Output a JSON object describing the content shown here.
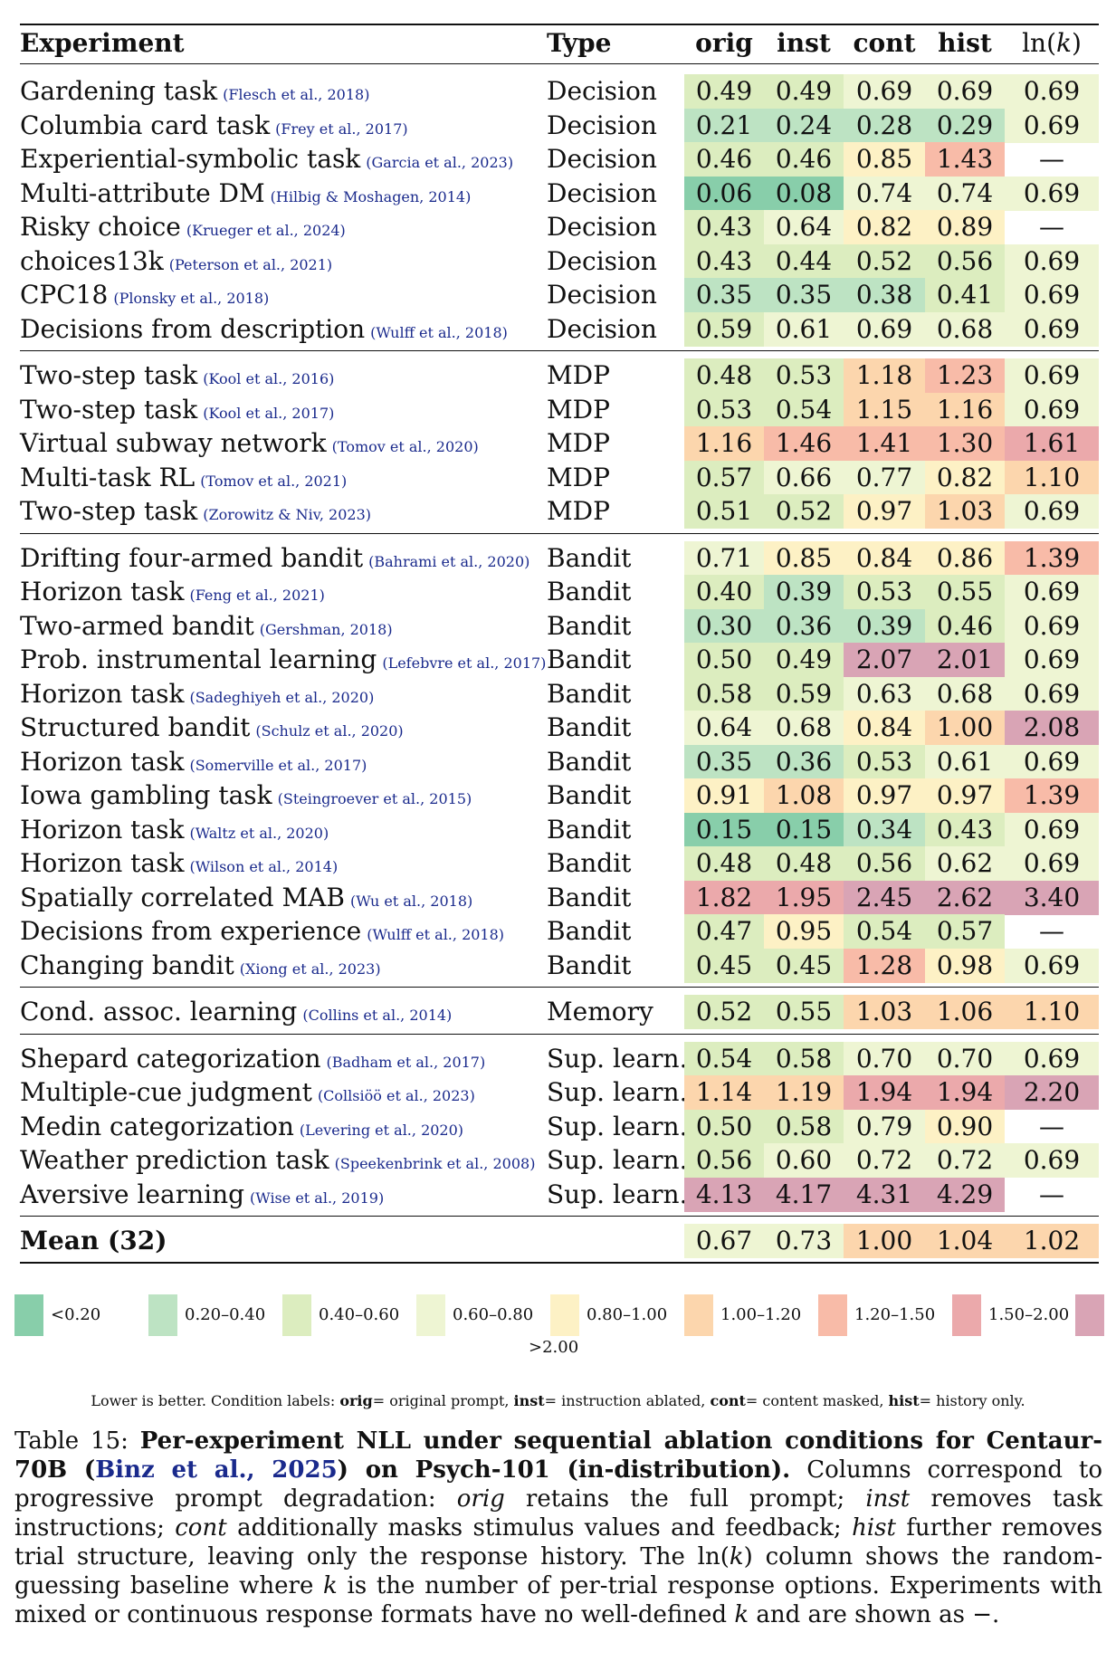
{
  "headers": {
    "experiment": "Experiment",
    "type": "Type",
    "orig": "orig",
    "inst": "inst",
    "cont": "cont",
    "hist": "hist",
    "lnk": "ln(k)"
  },
  "colors": {
    "lt020": "#88ceaa",
    "b020_040": "#bde3c3",
    "b040_060": "#dcedbf",
    "b060_080": "#eef5d3",
    "b080_100": "#fdf1c5",
    "b100_120": "#fcd6ad",
    "b120_150": "#f8bba8",
    "b150_200": "#eba9ab",
    "gt200": "#d9a4b5"
  },
  "dash": "—",
  "groups": [
    [
      {
        "exp": "Gardening task",
        "cite": "(Flesch et al., 2018)",
        "type": "Decision",
        "v": [
          0.49,
          0.49,
          0.69,
          0.69,
          0.69
        ]
      },
      {
        "exp": "Columbia card task",
        "cite": "(Frey et al., 2017)",
        "type": "Decision",
        "v": [
          0.21,
          0.24,
          0.28,
          0.29,
          0.69
        ]
      },
      {
        "exp": "Experiential-symbolic task",
        "cite": "(Garcia et al., 2023)",
        "type": "Decision",
        "v": [
          0.46,
          0.46,
          0.85,
          1.43,
          null
        ]
      },
      {
        "exp": "Multi-attribute DM",
        "cite": "(Hilbig & Moshagen, 2014)",
        "type": "Decision",
        "v": [
          0.06,
          0.08,
          0.74,
          0.74,
          0.69
        ]
      },
      {
        "exp": "Risky choice",
        "cite": "(Krueger et al., 2024)",
        "type": "Decision",
        "v": [
          0.43,
          0.64,
          0.82,
          0.89,
          null
        ]
      },
      {
        "exp": "choices13k",
        "cite": "(Peterson et al., 2021)",
        "type": "Decision",
        "v": [
          0.43,
          0.44,
          0.52,
          0.56,
          0.69
        ]
      },
      {
        "exp": "CPC18",
        "cite": "(Plonsky et al., 2018)",
        "type": "Decision",
        "v": [
          0.35,
          0.35,
          0.38,
          0.41,
          0.69
        ]
      },
      {
        "exp": "Decisions from description",
        "cite": "(Wulff et al., 2018)",
        "type": "Decision",
        "v": [
          0.59,
          0.61,
          0.69,
          0.68,
          0.69
        ]
      }
    ],
    [
      {
        "exp": "Two-step task",
        "cite": "(Kool et al., 2016)",
        "type": "MDP",
        "v": [
          0.48,
          0.53,
          1.18,
          1.23,
          0.69
        ]
      },
      {
        "exp": "Two-step task",
        "cite": "(Kool et al., 2017)",
        "type": "MDP",
        "v": [
          0.53,
          0.54,
          1.15,
          1.16,
          0.69
        ]
      },
      {
        "exp": "Virtual subway network",
        "cite": "(Tomov et al., 2020)",
        "type": "MDP",
        "v": [
          1.16,
          1.46,
          1.41,
          1.3,
          1.61
        ]
      },
      {
        "exp": "Multi-task RL",
        "cite": "(Tomov et al., 2021)",
        "type": "MDP",
        "v": [
          0.57,
          0.66,
          0.77,
          0.82,
          1.1
        ]
      },
      {
        "exp": "Two-step task",
        "cite": "(Zorowitz & Niv, 2023)",
        "type": "MDP",
        "v": [
          0.51,
          0.52,
          0.97,
          1.03,
          0.69
        ]
      }
    ],
    [
      {
        "exp": "Drifting four-armed bandit",
        "cite": "(Bahrami et al., 2020)",
        "type": "Bandit",
        "v": [
          0.71,
          0.85,
          0.84,
          0.86,
          1.39
        ]
      },
      {
        "exp": "Horizon task",
        "cite": "(Feng et al., 2021)",
        "type": "Bandit",
        "v": [
          0.4,
          0.39,
          0.53,
          0.55,
          0.69
        ]
      },
      {
        "exp": "Two-armed bandit",
        "cite": "(Gershman, 2018)",
        "type": "Bandit",
        "v": [
          0.3,
          0.36,
          0.39,
          0.46,
          0.69
        ]
      },
      {
        "exp": "Prob. instrumental learning",
        "cite": "(Lefebvre et al., 2017)",
        "type": "Bandit",
        "v": [
          0.5,
          0.49,
          2.07,
          2.01,
          0.69
        ]
      },
      {
        "exp": "Horizon task",
        "cite": "(Sadeghiyeh et al., 2020)",
        "type": "Bandit",
        "v": [
          0.58,
          0.59,
          0.63,
          0.68,
          0.69
        ]
      },
      {
        "exp": "Structured bandit",
        "cite": "(Schulz et al., 2020)",
        "type": "Bandit",
        "v": [
          0.64,
          0.68,
          0.84,
          1.0,
          2.08
        ]
      },
      {
        "exp": "Horizon task",
        "cite": "(Somerville et al., 2017)",
        "type": "Bandit",
        "v": [
          0.35,
          0.36,
          0.53,
          0.61,
          0.69
        ]
      },
      {
        "exp": "Iowa gambling task",
        "cite": "(Steingroever et al., 2015)",
        "type": "Bandit",
        "v": [
          0.91,
          1.08,
          0.97,
          0.97,
          1.39
        ]
      },
      {
        "exp": "Horizon task",
        "cite": "(Waltz et al., 2020)",
        "type": "Bandit",
        "v": [
          0.15,
          0.15,
          0.34,
          0.43,
          0.69
        ]
      },
      {
        "exp": "Horizon task",
        "cite": "(Wilson et al., 2014)",
        "type": "Bandit",
        "v": [
          0.48,
          0.48,
          0.56,
          0.62,
          0.69
        ]
      },
      {
        "exp": "Spatially correlated MAB",
        "cite": "(Wu et al., 2018)",
        "type": "Bandit",
        "v": [
          1.82,
          1.95,
          2.45,
          2.62,
          3.4
        ]
      },
      {
        "exp": "Decisions from experience",
        "cite": "(Wulff et al., 2018)",
        "type": "Bandit",
        "v": [
          0.47,
          0.95,
          0.54,
          0.57,
          null
        ]
      },
      {
        "exp": "Changing bandit",
        "cite": "(Xiong et al., 2023)",
        "type": "Bandit",
        "v": [
          0.45,
          0.45,
          1.28,
          0.98,
          0.69
        ]
      }
    ],
    [
      {
        "exp": "Cond. assoc. learning",
        "cite": "(Collins et al., 2014)",
        "type": "Memory",
        "v": [
          0.52,
          0.55,
          1.03,
          1.06,
          1.1
        ]
      }
    ],
    [
      {
        "exp": "Shepard categorization",
        "cite": "(Badham et al., 2017)",
        "type": "Sup. learn.",
        "v": [
          0.54,
          0.58,
          0.7,
          0.7,
          0.69
        ]
      },
      {
        "exp": "Multiple-cue judgment",
        "cite": "(Collsiöö et al., 2023)",
        "type": "Sup. learn.",
        "v": [
          1.14,
          1.19,
          1.94,
          1.94,
          2.2
        ]
      },
      {
        "exp": "Medin categorization",
        "cite": "(Levering et al., 2020)",
        "type": "Sup. learn.",
        "v": [
          0.5,
          0.58,
          0.79,
          0.9,
          null
        ]
      },
      {
        "exp": "Weather prediction task",
        "cite": "(Speekenbrink et al., 2008)",
        "type": "Sup. learn.",
        "v": [
          0.56,
          0.6,
          0.72,
          0.72,
          0.69
        ]
      },
      {
        "exp": "Aversive learning",
        "cite": "(Wise et al., 2019)",
        "type": "Sup. learn.",
        "v": [
          4.13,
          4.17,
          4.31,
          4.29,
          null
        ]
      }
    ]
  ],
  "mean": {
    "label": "Mean (32)",
    "v": [
      0.67,
      0.73,
      1.0,
      1.04,
      1.02
    ]
  },
  "legend": [
    "<0.20",
    "0.20–0.40",
    "0.40–0.60",
    "0.60–0.80",
    "0.80–1.00",
    "1.00–1.20",
    "1.20–1.50",
    "1.50–2.00",
    ">2.00"
  ],
  "note": {
    "lead": "Lower is better. Condition labels:",
    "orig_k": "orig",
    "orig_v": "= original prompt,",
    "inst_k": "inst",
    "inst_v": "= instruction ablated,",
    "cont_k": "cont",
    "cont_v": "= content masked,",
    "hist_k": "hist",
    "hist_v": "= history only."
  },
  "caption": {
    "label": "Table 15:",
    "title_a": "Per-experiment NLL under sequential ablation conditions for Centaur-70B (",
    "ref": "Binz et al., 2025",
    "title_b": ") on Psych-101 (in-distribution).",
    "body_1": "Columns correspond to progressive prompt degradation:",
    "orig": "orig",
    "body_2": "retains the full prompt;",
    "inst": "inst",
    "body_3": "removes task instructions;",
    "cont": "cont",
    "body_4": "additionally masks stimulus values and feedback;",
    "hist": "hist",
    "body_5": "further removes trial structure, leaving only the response history. The ln(",
    "k1": "k",
    "body_6": ") column shows the random-guessing baseline where",
    "k2": "k",
    "body_7": "is the number of per-trial response options. Experiments with mixed or continuous response formats have no well-defined",
    "k3": "k",
    "body_8": "and are shown as −."
  }
}
